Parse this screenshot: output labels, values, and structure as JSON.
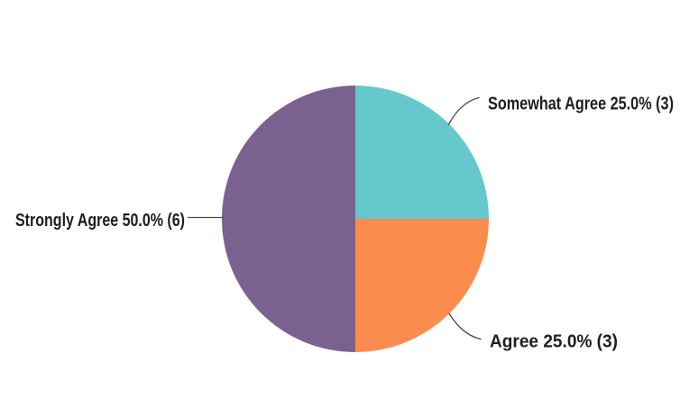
{
  "chart_data": {
    "type": "pie",
    "categories": [
      "Somewhat Agree",
      "Agree",
      "Strongly Agree"
    ],
    "values": [
      3,
      3,
      6
    ],
    "slices": [
      {
        "label": "Somewhat Agree",
        "percent": 25.0,
        "count": 3,
        "color": "#66C7CC",
        "callout": "Somewhat Agree 25.0% (3)"
      },
      {
        "label": "Agree",
        "percent": 25.0,
        "count": 3,
        "color": "#FB8C4E",
        "callout": "Agree 25.0% (3)"
      },
      {
        "label": "Strongly Agree",
        "percent": 50.0,
        "count": 6,
        "color": "#7B6190",
        "callout": "Strongly Agree 50.0% (6)"
      }
    ],
    "start_angle_deg": 0,
    "direction": "clockwise",
    "legend": "none",
    "label_style": "external-callout",
    "leader_line_color": "#4A4A4A",
    "label_text_color": "#1E1E1E",
    "background_color": "#FFFFFF"
  }
}
